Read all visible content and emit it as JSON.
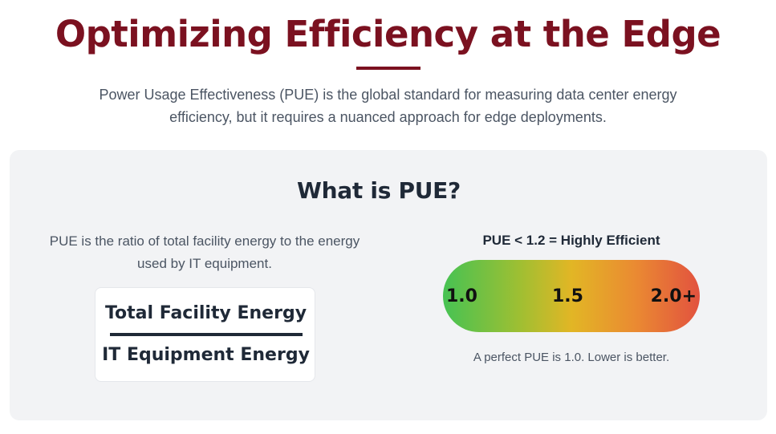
{
  "header": {
    "title": "Optimizing Efficiency at the Edge",
    "intro": "Power Usage Effectiveness (PUE) is the global standard for measuring data center energy efficiency, but it requires a nuanced approach for edge deployments.",
    "accent_color": "#7b1120"
  },
  "pue_section": {
    "title": "What is PUE?",
    "description": "PUE is the ratio of total facility energy to the energy used by IT equipment.",
    "formula": {
      "numerator": "Total Facility Energy",
      "denominator": "IT Equipment Energy"
    },
    "scale": {
      "label": "PUE < 1.2 = Highly Efficient",
      "ticks": [
        "1.0",
        "1.5",
        "2.0+"
      ],
      "gradient_colors": [
        "#46c253",
        "#e2b625",
        "#e2523f"
      ],
      "note": "A perfect PUE is 1.0. Lower is better."
    }
  }
}
